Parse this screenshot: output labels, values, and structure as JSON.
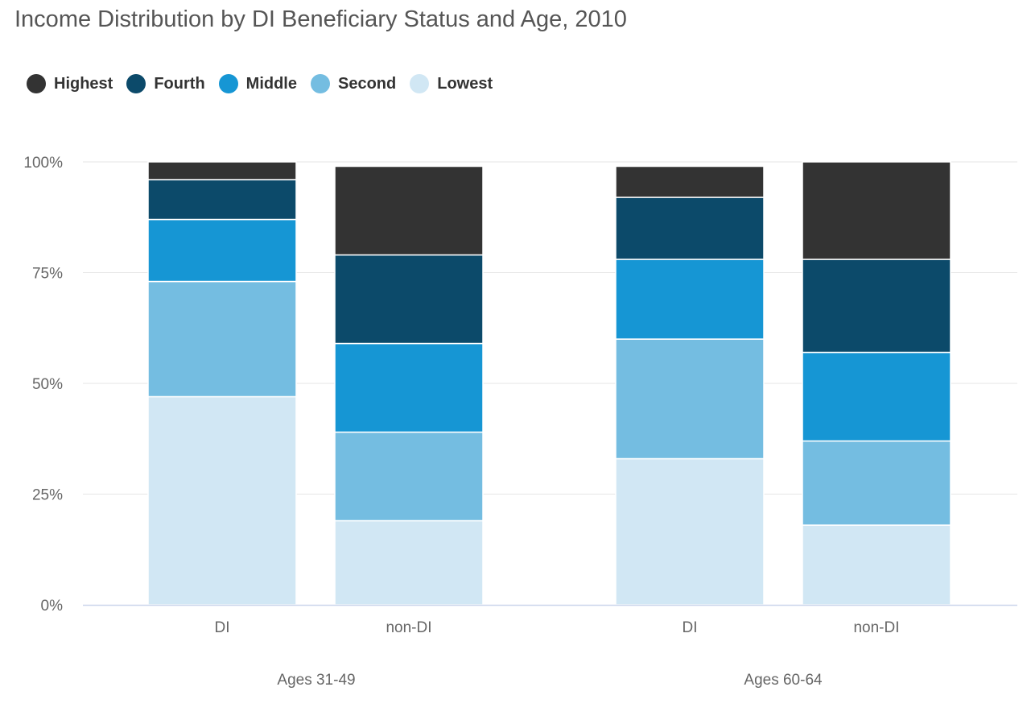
{
  "chart_data": {
    "type": "bar",
    "stacked": true,
    "title": "Income Distribution by DI Beneficiary Status and Age, 2010",
    "groups": [
      "Ages 31-49",
      "Ages 60-64"
    ],
    "categories": [
      "DI",
      "non-DI",
      "DI",
      "non-DI"
    ],
    "category_groups": [
      "Ages 31-49",
      "Ages 31-49",
      "Ages 60-64",
      "Ages 60-64"
    ],
    "y_ticks": [
      "0%",
      "25%",
      "50%",
      "75%",
      "100%"
    ],
    "ylim": [
      0,
      100
    ],
    "grid": true,
    "legend_position": "top-left",
    "series": [
      {
        "name": "Lowest",
        "color": "#d1e7f4",
        "values": [
          47,
          19,
          33,
          18
        ]
      },
      {
        "name": "Second",
        "color": "#74bde1",
        "values": [
          26,
          20,
          27,
          19
        ]
      },
      {
        "name": "Middle",
        "color": "#1696d4",
        "values": [
          14,
          20,
          18,
          20
        ]
      },
      {
        "name": "Fourth",
        "color": "#0c4a6a",
        "values": [
          9,
          20,
          14,
          21
        ]
      },
      {
        "name": "Highest",
        "color": "#333333",
        "values": [
          4,
          20,
          7,
          22
        ]
      }
    ]
  },
  "legend": [
    {
      "label": "Highest",
      "color": "#333333"
    },
    {
      "label": "Fourth",
      "color": "#0c4a6a"
    },
    {
      "label": "Middle",
      "color": "#1696d4"
    },
    {
      "label": "Second",
      "color": "#74bde1"
    },
    {
      "label": "Lowest",
      "color": "#d1e7f4"
    }
  ]
}
